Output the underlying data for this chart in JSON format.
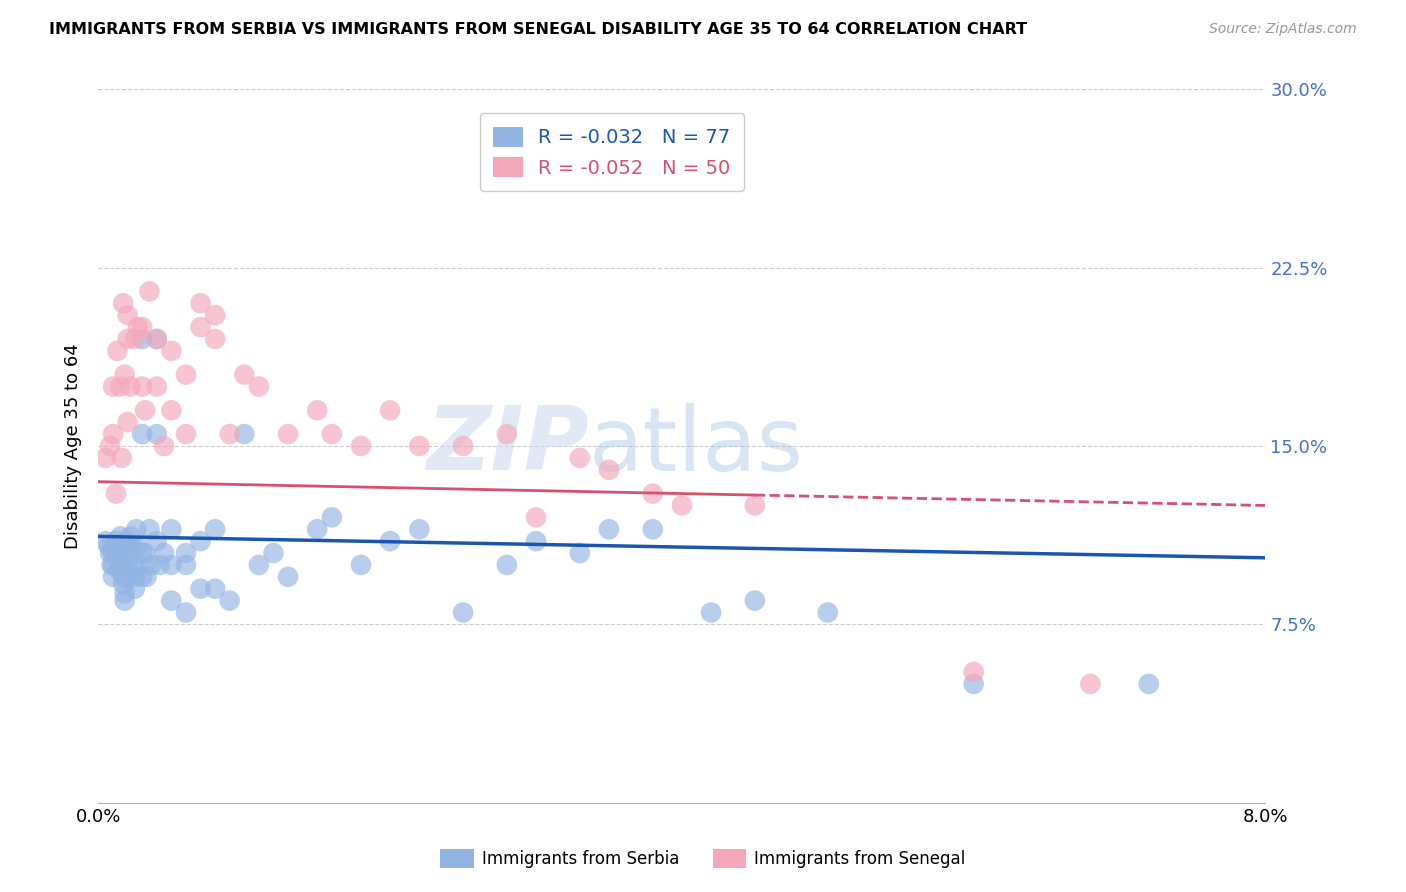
{
  "title": "IMMIGRANTS FROM SERBIA VS IMMIGRANTS FROM SENEGAL DISABILITY AGE 35 TO 64 CORRELATION CHART",
  "source": "Source: ZipAtlas.com",
  "ylabel": "Disability Age 35 to 64",
  "x_min": 0.0,
  "x_max": 0.08,
  "y_min": 0.0,
  "y_max": 0.3,
  "y_ticks": [
    0.0,
    0.075,
    0.15,
    0.225,
    0.3
  ],
  "y_tick_labels_right": [
    "",
    "7.5%",
    "15.0%",
    "22.5%",
    "30.0%"
  ],
  "serbia_R": -0.032,
  "serbia_N": 77,
  "senegal_R": -0.052,
  "senegal_N": 50,
  "serbia_color": "#92b4e3",
  "senegal_color": "#f4a7b9",
  "serbia_line_color": "#1a56b0",
  "senegal_line_color": "#d94f6e",
  "watermark_zip": "ZIP",
  "watermark_atlas": "atlas",
  "serbia_x": [
    0.0005,
    0.0007,
    0.0008,
    0.0009,
    0.001,
    0.001,
    0.001,
    0.001,
    0.0012,
    0.0013,
    0.0013,
    0.0014,
    0.0015,
    0.0015,
    0.0016,
    0.0016,
    0.0017,
    0.0017,
    0.0018,
    0.0018,
    0.0019,
    0.002,
    0.002,
    0.002,
    0.002,
    0.0022,
    0.0023,
    0.0024,
    0.0025,
    0.0025,
    0.0026,
    0.0027,
    0.0028,
    0.003,
    0.003,
    0.003,
    0.003,
    0.0032,
    0.0033,
    0.0035,
    0.0036,
    0.004,
    0.004,
    0.004,
    0.0042,
    0.0045,
    0.005,
    0.005,
    0.005,
    0.006,
    0.006,
    0.006,
    0.007,
    0.007,
    0.008,
    0.008,
    0.009,
    0.01,
    0.011,
    0.012,
    0.013,
    0.015,
    0.016,
    0.018,
    0.02,
    0.022,
    0.025,
    0.028,
    0.03,
    0.033,
    0.035,
    0.038,
    0.042,
    0.045,
    0.05,
    0.06,
    0.072
  ],
  "serbia_y": [
    0.11,
    0.108,
    0.105,
    0.1,
    0.108,
    0.105,
    0.1,
    0.095,
    0.11,
    0.108,
    0.103,
    0.098,
    0.112,
    0.108,
    0.105,
    0.1,
    0.095,
    0.092,
    0.088,
    0.085,
    0.11,
    0.108,
    0.105,
    0.1,
    0.095,
    0.112,
    0.108,
    0.1,
    0.095,
    0.09,
    0.115,
    0.108,
    0.1,
    0.195,
    0.155,
    0.105,
    0.095,
    0.105,
    0.095,
    0.115,
    0.1,
    0.195,
    0.155,
    0.11,
    0.1,
    0.105,
    0.115,
    0.1,
    0.085,
    0.105,
    0.1,
    0.08,
    0.11,
    0.09,
    0.115,
    0.09,
    0.085,
    0.155,
    0.1,
    0.105,
    0.095,
    0.115,
    0.12,
    0.1,
    0.11,
    0.115,
    0.08,
    0.1,
    0.11,
    0.105,
    0.115,
    0.115,
    0.08,
    0.085,
    0.08,
    0.05,
    0.05
  ],
  "senegal_x": [
    0.0005,
    0.0008,
    0.001,
    0.001,
    0.0012,
    0.0013,
    0.0015,
    0.0016,
    0.0017,
    0.0018,
    0.002,
    0.002,
    0.002,
    0.0022,
    0.0025,
    0.0027,
    0.003,
    0.003,
    0.0032,
    0.0035,
    0.004,
    0.004,
    0.0045,
    0.005,
    0.005,
    0.006,
    0.006,
    0.007,
    0.007,
    0.008,
    0.008,
    0.009,
    0.01,
    0.011,
    0.013,
    0.015,
    0.016,
    0.018,
    0.02,
    0.022,
    0.025,
    0.028,
    0.03,
    0.033,
    0.035,
    0.038,
    0.04,
    0.045,
    0.06,
    0.068
  ],
  "senegal_y": [
    0.145,
    0.15,
    0.155,
    0.175,
    0.13,
    0.19,
    0.175,
    0.145,
    0.21,
    0.18,
    0.195,
    0.205,
    0.16,
    0.175,
    0.195,
    0.2,
    0.175,
    0.2,
    0.165,
    0.215,
    0.175,
    0.195,
    0.15,
    0.165,
    0.19,
    0.18,
    0.155,
    0.21,
    0.2,
    0.195,
    0.205,
    0.155,
    0.18,
    0.175,
    0.155,
    0.165,
    0.155,
    0.15,
    0.165,
    0.15,
    0.15,
    0.155,
    0.12,
    0.145,
    0.14,
    0.13,
    0.125,
    0.125,
    0.055,
    0.05
  ],
  "serbia_line_x0": 0.0,
  "serbia_line_x1": 0.08,
  "serbia_line_y0": 0.112,
  "serbia_line_y1": 0.103,
  "senegal_line_x0": 0.0,
  "senegal_line_x1": 0.08,
  "senegal_line_y0": 0.135,
  "senegal_line_y1": 0.125
}
